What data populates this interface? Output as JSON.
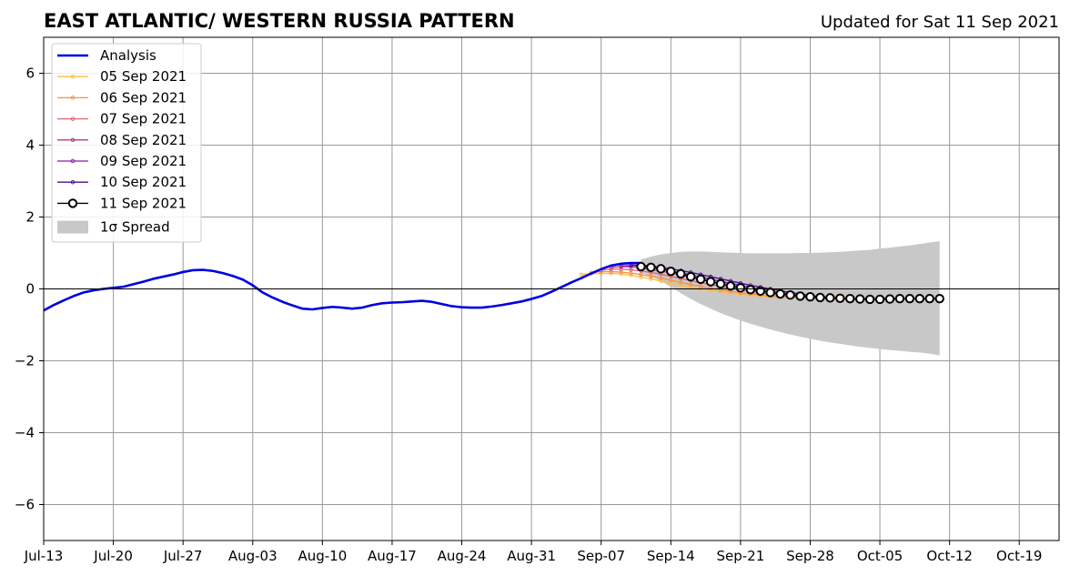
{
  "title": "EAST ATLANTIC/ WESTERN RUSSIA PATTERN",
  "updated": "Updated for Sat 11 Sep 2021",
  "chart_data": {
    "type": "line",
    "title": "EAST ATLANTIC/ WESTERN RUSSIA PATTERN",
    "subtitle": "Updated for Sat 11 Sep 2021",
    "xlabel": "",
    "ylabel": "",
    "x_start": "2021-07-13",
    "x_end": "2021-10-23",
    "x_ticks": [
      "Jul-13",
      "Jul-20",
      "Jul-27",
      "Aug-03",
      "Aug-10",
      "Aug-17",
      "Aug-24",
      "Aug-31",
      "Sep-07",
      "Sep-14",
      "Sep-21",
      "Sep-28",
      "Oct-05",
      "Oct-12",
      "Oct-19"
    ],
    "ylim": [
      -7,
      7
    ],
    "y_ticks": [
      -6,
      -4,
      -2,
      0,
      2,
      4,
      6
    ],
    "y_tick_labels": [
      "−6",
      "−4",
      "−2",
      "0",
      "2",
      "4",
      "6"
    ],
    "grid": true,
    "legend_position": "top-left",
    "analysis": {
      "name": "Analysis",
      "color": "#0000e0",
      "points": [
        [
          "2021-07-13",
          -0.6
        ],
        [
          "2021-07-14",
          -0.45
        ],
        [
          "2021-07-15",
          -0.32
        ],
        [
          "2021-07-16",
          -0.2
        ],
        [
          "2021-07-17",
          -0.1
        ],
        [
          "2021-07-18",
          -0.04
        ],
        [
          "2021-07-19",
          0.0
        ],
        [
          "2021-07-20",
          0.03
        ],
        [
          "2021-07-21",
          0.06
        ],
        [
          "2021-07-22",
          0.13
        ],
        [
          "2021-07-23",
          0.2
        ],
        [
          "2021-07-24",
          0.28
        ],
        [
          "2021-07-25",
          0.34
        ],
        [
          "2021-07-26",
          0.4
        ],
        [
          "2021-07-27",
          0.47
        ],
        [
          "2021-07-28",
          0.52
        ],
        [
          "2021-07-29",
          0.53
        ],
        [
          "2021-07-30",
          0.5
        ],
        [
          "2021-07-31",
          0.44
        ],
        [
          "2021-08-01",
          0.36
        ],
        [
          "2021-08-02",
          0.26
        ],
        [
          "2021-08-03",
          0.1
        ],
        [
          "2021-08-04",
          -0.1
        ],
        [
          "2021-08-05",
          -0.24
        ],
        [
          "2021-08-06",
          -0.36
        ],
        [
          "2021-08-07",
          -0.46
        ],
        [
          "2021-08-08",
          -0.55
        ],
        [
          "2021-08-09",
          -0.57
        ],
        [
          "2021-08-10",
          -0.53
        ],
        [
          "2021-08-11",
          -0.5
        ],
        [
          "2021-08-12",
          -0.52
        ],
        [
          "2021-08-13",
          -0.55
        ],
        [
          "2021-08-14",
          -0.52
        ],
        [
          "2021-08-15",
          -0.45
        ],
        [
          "2021-08-16",
          -0.4
        ],
        [
          "2021-08-17",
          -0.38
        ],
        [
          "2021-08-18",
          -0.37
        ],
        [
          "2021-08-19",
          -0.35
        ],
        [
          "2021-08-20",
          -0.33
        ],
        [
          "2021-08-21",
          -0.36
        ],
        [
          "2021-08-22",
          -0.42
        ],
        [
          "2021-08-23",
          -0.48
        ],
        [
          "2021-08-24",
          -0.51
        ],
        [
          "2021-08-25",
          -0.52
        ],
        [
          "2021-08-26",
          -0.52
        ],
        [
          "2021-08-27",
          -0.49
        ],
        [
          "2021-08-28",
          -0.45
        ],
        [
          "2021-08-29",
          -0.4
        ],
        [
          "2021-08-30",
          -0.35
        ],
        [
          "2021-08-31",
          -0.28
        ],
        [
          "2021-09-01",
          -0.2
        ],
        [
          "2021-09-02",
          -0.08
        ],
        [
          "2021-09-03",
          0.05
        ],
        [
          "2021-09-04",
          0.18
        ],
        [
          "2021-09-05",
          0.3
        ],
        [
          "2021-09-06",
          0.43
        ],
        [
          "2021-09-07",
          0.55
        ],
        [
          "2021-09-08",
          0.65
        ],
        [
          "2021-09-09",
          0.7
        ],
        [
          "2021-09-10",
          0.72
        ],
        [
          "2021-09-11",
          0.72
        ]
      ]
    },
    "forecast_dates": [
      "2021-09-05",
      "2021-09-06",
      "2021-09-07",
      "2021-09-08",
      "2021-09-09",
      "2021-09-10"
    ],
    "forecasts": [
      {
        "name": "05 Sep 2021",
        "color": "#ffbb44",
        "values": [
          0.4,
          0.42,
          0.43,
          0.43,
          0.42,
          0.38,
          0.33,
          0.28,
          0.22,
          0.16,
          0.1,
          0.05,
          0.0,
          -0.04,
          -0.08,
          -0.12,
          -0.15,
          -0.18,
          -0.2,
          -0.22,
          -0.23,
          -0.23,
          -0.22,
          -0.21,
          -0.2,
          -0.2,
          -0.21,
          -0.22,
          -0.23,
          -0.25,
          -0.26
        ]
      },
      {
        "name": "06 Sep 2021",
        "color": "#f4914a",
        "values": [
          0.45,
          0.48,
          0.48,
          0.47,
          0.44,
          0.4,
          0.35,
          0.3,
          0.24,
          0.18,
          0.12,
          0.07,
          0.02,
          -0.03,
          -0.07,
          -0.11,
          -0.14,
          -0.17,
          -0.2,
          -0.22,
          -0.23,
          -0.24,
          -0.24,
          -0.24,
          -0.25,
          -0.26,
          -0.27,
          -0.28,
          -0.28,
          -0.28,
          -0.28
        ]
      },
      {
        "name": "07 Sep 2021",
        "color": "#e0646e",
        "values": [
          0.52,
          0.55,
          0.55,
          0.53,
          0.5,
          0.46,
          0.41,
          0.35,
          0.29,
          0.23,
          0.17,
          0.12,
          0.07,
          0.02,
          -0.03,
          -0.07,
          -0.11,
          -0.15,
          -0.18,
          -0.21,
          -0.23,
          -0.25,
          -0.26,
          -0.27,
          -0.27,
          -0.27,
          -0.27,
          -0.26,
          -0.26,
          -0.26,
          -0.26
        ]
      },
      {
        "name": "08 Sep 2021",
        "color": "#b4388c",
        "values": [
          0.6,
          0.62,
          0.61,
          0.58,
          0.54,
          0.5,
          0.44,
          0.38,
          0.32,
          0.26,
          0.2,
          0.14,
          0.09,
          0.04,
          -0.01,
          -0.06,
          -0.1,
          -0.14,
          -0.18,
          -0.21,
          -0.23,
          -0.25,
          -0.27,
          -0.28,
          -0.28,
          -0.28,
          -0.27,
          -0.27,
          -0.27,
          -0.27,
          -0.27
        ]
      },
      {
        "name": "09 Sep 2021",
        "color": "#8a1aaa",
        "values": [
          0.64,
          0.65,
          0.63,
          0.6,
          0.56,
          0.51,
          0.45,
          0.39,
          0.33,
          0.27,
          0.21,
          0.15,
          0.1,
          0.04,
          -0.01,
          -0.06,
          -0.1,
          -0.14,
          -0.18,
          -0.21,
          -0.24,
          -0.26,
          -0.27,
          -0.28,
          -0.29,
          -0.29,
          -0.28,
          -0.28,
          -0.28,
          -0.27,
          -0.27
        ]
      },
      {
        "name": "10 Sep 2021",
        "color": "#4b0f8c",
        "values": [
          0.66,
          0.66,
          0.64,
          0.6,
          0.56,
          0.51,
          0.46,
          0.4,
          0.34,
          0.28,
          0.22,
          0.16,
          0.1,
          0.05,
          0.0,
          -0.05,
          -0.1,
          -0.14,
          -0.18,
          -0.21,
          -0.24,
          -0.26,
          -0.27,
          -0.28,
          -0.29,
          -0.29,
          -0.28,
          -0.28,
          -0.27,
          -0.27,
          -0.27
        ]
      }
    ],
    "current_forecast": {
      "name": "11 Sep 2021",
      "start": "2021-09-11",
      "values": [
        0.62,
        0.6,
        0.56,
        0.49,
        0.42,
        0.34,
        0.27,
        0.2,
        0.14,
        0.08,
        0.03,
        -0.02,
        -0.06,
        -0.1,
        -0.14,
        -0.17,
        -0.2,
        -0.22,
        -0.24,
        -0.25,
        -0.26,
        -0.27,
        -0.28,
        -0.29,
        -0.29,
        -0.28,
        -0.27,
        -0.27,
        -0.27,
        -0.27,
        -0.27
      ]
    },
    "spread": {
      "name": "1σ Spread",
      "color": "#c8c8c8",
      "start": "2021-09-11",
      "upper": [
        0.82,
        0.9,
        0.96,
        1.0,
        1.03,
        1.04,
        1.04,
        1.03,
        1.02,
        1.01,
        1.0,
        0.99,
        0.99,
        0.99,
        0.99,
        0.99,
        1.0,
        1.0,
        1.01,
        1.02,
        1.03,
        1.05,
        1.07,
        1.09,
        1.12,
        1.15,
        1.18,
        1.21,
        1.25,
        1.29,
        1.33
      ],
      "lower": [
        0.45,
        0.35,
        0.22,
        0.05,
        -0.12,
        -0.28,
        -0.42,
        -0.55,
        -0.67,
        -0.78,
        -0.88,
        -0.97,
        -1.05,
        -1.13,
        -1.2,
        -1.27,
        -1.33,
        -1.39,
        -1.44,
        -1.49,
        -1.53,
        -1.57,
        -1.61,
        -1.64,
        -1.67,
        -1.7,
        -1.72,
        -1.75,
        -1.77,
        -1.8,
        -1.85
      ]
    }
  }
}
